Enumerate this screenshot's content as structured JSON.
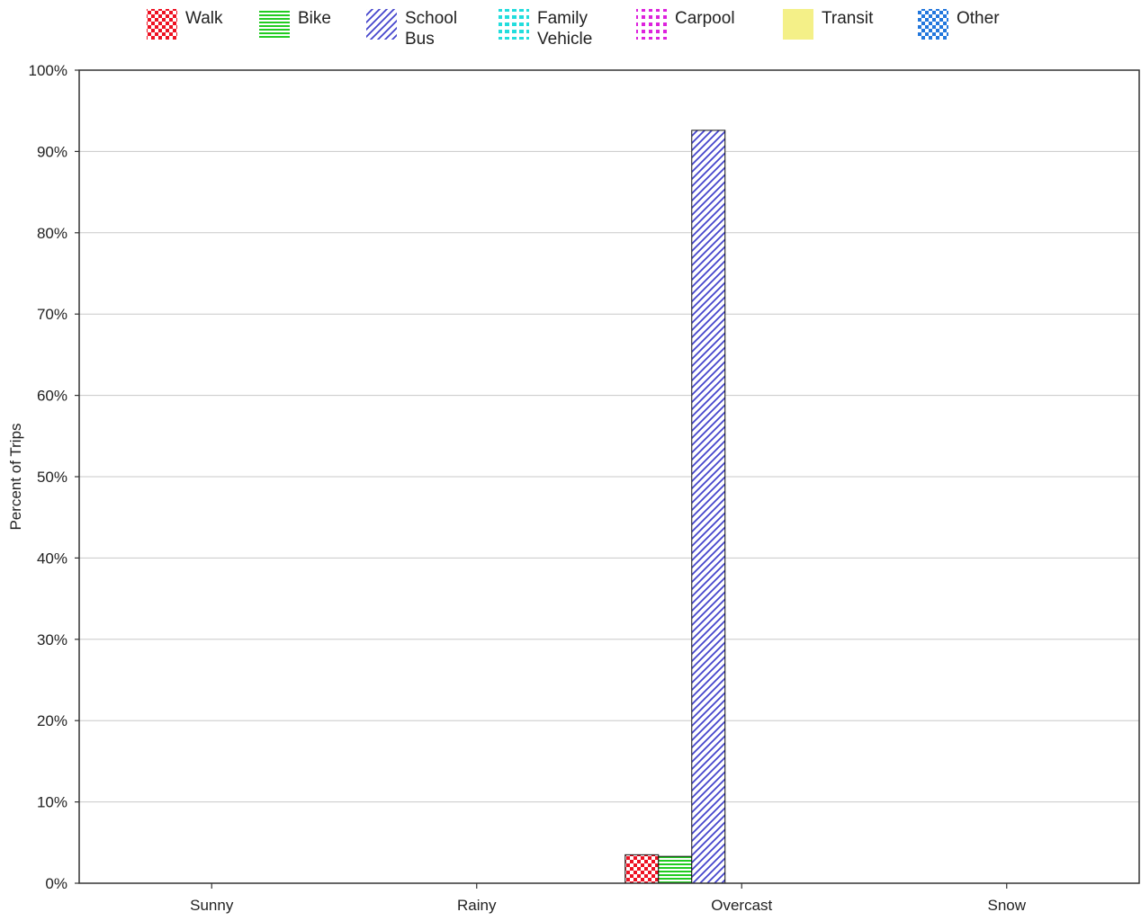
{
  "chart_data": {
    "type": "bar",
    "ylabel": "Percent of Trips",
    "ylim": [
      0,
      100
    ],
    "yticks": [
      0,
      10,
      20,
      30,
      40,
      50,
      60,
      70,
      80,
      90,
      100
    ],
    "ytick_suffix": "%",
    "categories": [
      "Sunny",
      "Rainy",
      "Overcast",
      "Snow"
    ],
    "grid": true,
    "legend_position": "top",
    "series": [
      {
        "name": "Walk",
        "label_lines": [
          "Walk"
        ],
        "color": "#ee1122",
        "pattern": "checker",
        "values": [
          0,
          0,
          3.5,
          0
        ]
      },
      {
        "name": "Bike",
        "label_lines": [
          "Bike"
        ],
        "color": "#22cc22",
        "pattern": "hlines",
        "values": [
          0,
          0,
          3.3,
          0
        ]
      },
      {
        "name": "School Bus",
        "label_lines": [
          "School",
          "Bus"
        ],
        "color": "#4444cc",
        "pattern": "diagonal",
        "values": [
          0,
          0,
          92.6,
          0
        ]
      },
      {
        "name": "Family Vehicle",
        "label_lines": [
          "Family",
          "Vehicle"
        ],
        "color": "#22dddd",
        "pattern": "dots-big",
        "values": [
          0,
          0,
          0,
          0
        ]
      },
      {
        "name": "Carpool",
        "label_lines": [
          "Carpool"
        ],
        "color": "#dd22dd",
        "pattern": "dots",
        "values": [
          0,
          0,
          0,
          0
        ]
      },
      {
        "name": "Transit",
        "label_lines": [
          "Transit"
        ],
        "color": "#f4f088",
        "pattern": "solid",
        "values": [
          0,
          0,
          0,
          0
        ]
      },
      {
        "name": "Other",
        "label_lines": [
          "Other"
        ],
        "color": "#2277dd",
        "pattern": "checker",
        "values": [
          0,
          0,
          0,
          0
        ]
      }
    ]
  }
}
